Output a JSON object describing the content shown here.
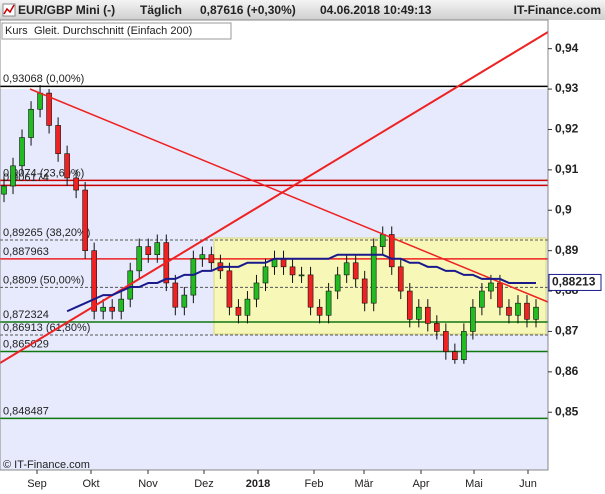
{
  "chart_data": {
    "type": "candlestick",
    "header": {
      "instrument": "EUR/GBP Mini (-)",
      "period": "Täglich",
      "quote": "0,87616 (+0,30%)",
      "timestamp": "04.06.2018 10:49:13",
      "brand": "IT-Finance.com"
    },
    "footer": "© IT-Finance.com",
    "price_name": "Kurs",
    "up_color": "#22bb22",
    "down_color": "#ee2222",
    "open": [
      0.904,
      0.906,
      0.911,
      0.918,
      0.925,
      0.929,
      0.921,
      0.914,
      0.908,
      0.905,
      0.89,
      0.875,
      0.876,
      0.875,
      0.878,
      0.885,
      0.891,
      0.889,
      0.892,
      0.882,
      0.876,
      0.879,
      0.888,
      0.889,
      0.887,
      0.885,
      0.876,
      0.874,
      0.878,
      0.882,
      0.886,
      0.888,
      0.886,
      0.884,
      0.884,
      0.876,
      0.874,
      0.88,
      0.884,
      0.887,
      0.883,
      0.877,
      0.891,
      0.894,
      0.886,
      0.88,
      0.873,
      0.876,
      0.872,
      0.87,
      0.865,
      0.863,
      0.87,
      0.876,
      0.88,
      0.882,
      0.876,
      0.874,
      0.877,
      0.873
    ],
    "high": [
      0.908,
      0.913,
      0.92,
      0.927,
      0.931,
      0.93,
      0.923,
      0.916,
      0.91,
      0.907,
      0.892,
      0.878,
      0.878,
      0.88,
      0.887,
      0.893,
      0.893,
      0.894,
      0.894,
      0.884,
      0.881,
      0.89,
      0.891,
      0.891,
      0.889,
      0.887,
      0.878,
      0.88,
      0.884,
      0.888,
      0.89,
      0.89,
      0.888,
      0.886,
      0.886,
      0.878,
      0.882,
      0.886,
      0.889,
      0.889,
      0.885,
      0.893,
      0.896,
      0.896,
      0.888,
      0.882,
      0.878,
      0.878,
      0.874,
      0.872,
      0.867,
      0.872,
      0.878,
      0.882,
      0.884,
      0.884,
      0.878,
      0.879,
      0.879,
      0.878
    ],
    "low": [
      0.902,
      0.904,
      0.909,
      0.916,
      0.923,
      0.919,
      0.912,
      0.906,
      0.903,
      0.888,
      0.873,
      0.873,
      0.873,
      0.873,
      0.876,
      0.883,
      0.887,
      0.887,
      0.88,
      0.874,
      0.874,
      0.877,
      0.886,
      0.885,
      0.883,
      0.874,
      0.872,
      0.872,
      0.876,
      0.88,
      0.884,
      0.884,
      0.882,
      0.882,
      0.874,
      0.872,
      0.872,
      0.878,
      0.882,
      0.881,
      0.875,
      0.875,
      0.889,
      0.884,
      0.878,
      0.871,
      0.871,
      0.87,
      0.868,
      0.863,
      0.862,
      0.862,
      0.868,
      0.874,
      0.878,
      0.874,
      0.872,
      0.872,
      0.871,
      0.871
    ],
    "close": [
      0.906,
      0.911,
      0.918,
      0.925,
      0.929,
      0.921,
      0.914,
      0.908,
      0.905,
      0.89,
      0.875,
      0.876,
      0.875,
      0.878,
      0.885,
      0.891,
      0.889,
      0.892,
      0.882,
      0.876,
      0.879,
      0.888,
      0.889,
      0.887,
      0.885,
      0.876,
      0.874,
      0.878,
      0.882,
      0.886,
      0.888,
      0.886,
      0.884,
      0.884,
      0.876,
      0.874,
      0.88,
      0.884,
      0.887,
      0.883,
      0.877,
      0.891,
      0.894,
      0.886,
      0.88,
      0.873,
      0.876,
      0.872,
      0.87,
      0.865,
      0.863,
      0.87,
      0.876,
      0.88,
      0.882,
      0.876,
      0.874,
      0.877,
      0.873,
      0.876
    ],
    "ma": {
      "name": "Gleit. Durchschnitt (Einfach 200)",
      "color": "#1a1a8c",
      "values": [
        null,
        null,
        null,
        null,
        null,
        null,
        null,
        0.875,
        0.876,
        0.877,
        0.878,
        0.879,
        0.879,
        0.88,
        0.881,
        0.881,
        0.882,
        0.882,
        0.883,
        0.883,
        0.884,
        0.884,
        0.885,
        0.885,
        0.886,
        0.886,
        0.886,
        0.887,
        0.887,
        0.887,
        0.888,
        0.888,
        0.888,
        0.888,
        0.888,
        0.888,
        0.888,
        0.889,
        0.889,
        0.889,
        0.889,
        0.889,
        0.889,
        0.888,
        0.888,
        0.887,
        0.887,
        0.886,
        0.886,
        0.885,
        0.885,
        0.884,
        0.884,
        0.883,
        0.883,
        0.883,
        0.882,
        0.882,
        0.882,
        0.882
      ]
    },
    "last_marker": {
      "value": 0.88213,
      "label": "0,88213"
    },
    "levels": [
      {
        "value": 0.93068,
        "label": "0,93068 (0,00%)",
        "color": "#000000",
        "style": "solid"
      },
      {
        "value": 0.9074,
        "label": "0,9074 (23,60%)",
        "color": "#cc0000",
        "style": "solid"
      },
      {
        "value": 0.906174,
        "label": "0,906174",
        "color": "#cc0000",
        "style": "solid"
      },
      {
        "value": 0.89265,
        "label": "0,89265 (38,20%)",
        "color": "#555555",
        "style": "dashed"
      },
      {
        "value": 0.887963,
        "label": "0,887963",
        "color": "#ee2222",
        "style": "solid"
      },
      {
        "value": 0.8809,
        "label": "0,8809 (50,00%)",
        "color": "#555555",
        "style": "dashed"
      },
      {
        "value": 0.872324,
        "label": "0,872324",
        "color": "#117711",
        "style": "solid"
      },
      {
        "value": 0.86913,
        "label": "0,86913 (61,80%)",
        "color": "#555555",
        "style": "dashed"
      },
      {
        "value": 0.865029,
        "label": "0,865029",
        "color": "#117711",
        "style": "solid"
      },
      {
        "value": 0.848487,
        "label": "0,848487",
        "color": "#117711",
        "style": "solid"
      }
    ],
    "x_labels": [
      "Sep",
      "Okt",
      "Nov",
      "Dez",
      "2018",
      "Feb",
      "Mär",
      "Apr",
      "Mai",
      "Jun"
    ],
    "ylim": [
      0.8357,
      0.9471
    ],
    "yticks": [
      {
        "value": 0.85,
        "label": "0,85"
      },
      {
        "value": 0.86,
        "label": "0,86"
      },
      {
        "value": 0.87,
        "label": "0,87"
      },
      {
        "value": 0.88,
        "label": "0,88"
      },
      {
        "value": 0.89,
        "label": "0,89"
      },
      {
        "value": 0.9,
        "label": "0,9"
      },
      {
        "value": 0.91,
        "label": "0,91"
      },
      {
        "value": 0.92,
        "label": "0,92"
      },
      {
        "value": 0.93,
        "label": "0,93"
      },
      {
        "value": 0.94,
        "label": "0,94"
      }
    ]
  }
}
